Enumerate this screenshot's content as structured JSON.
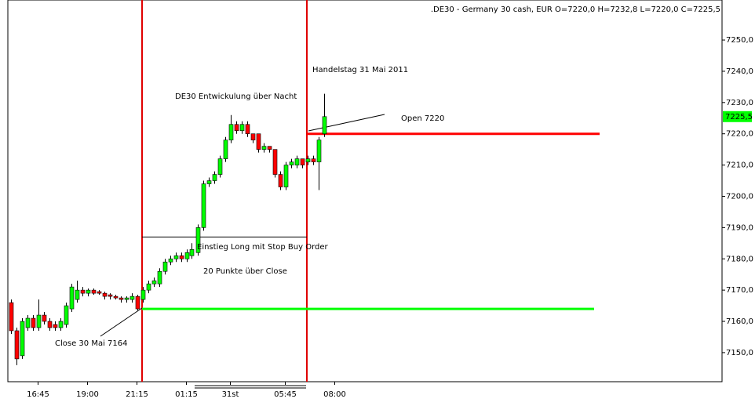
{
  "chart_data": {
    "type": "candlestick",
    "title": ".DE30 - Germany 30 cash, EUR O=7220,0 H=7232,8 L=7220,0 C=7225,5",
    "open": [
      7166,
      7157,
      7149,
      7158,
      7161,
      7158,
      7162,
      7160,
      7159,
      7158,
      7159,
      7164,
      7167,
      7170,
      7169,
      7170,
      7169.5,
      7169,
      7168.5,
      7168,
      7167.5,
      7167,
      7167,
      7168,
      7167,
      7170,
      7172,
      7172,
      7176,
      7179,
      7180,
      7181,
      7180,
      7181,
      7182,
      7190,
      7204,
      7205,
      7207,
      7212,
      7218,
      7223,
      7221,
      7223,
      7220,
      7220,
      7215,
      7216,
      7215,
      7207,
      7203,
      7210,
      7210,
      7212,
      7211,
      7212,
      7211,
      7220
    ],
    "high": [
      7167,
      7158,
      7161,
      7162,
      7162,
      7167,
      7163,
      7161,
      7160,
      7161,
      7166,
      7172,
      7173,
      7171,
      7170.5,
      7170.5,
      7170,
      7169.5,
      7169,
      7168.5,
      7168,
      7168,
      7169,
      7168.5,
      7171,
      7173,
      7174,
      7177,
      7180,
      7181,
      7182,
      7182,
      7183,
      7185,
      7191,
      7205,
      7206,
      7208,
      7213,
      7219,
      7226,
      7224,
      7224,
      7224,
      7220,
      7220,
      7217,
      7216,
      7215,
      7208,
      7211,
      7212,
      7213,
      7212,
      7213,
      7213,
      7219,
      7232.8
    ],
    "low": [
      7156,
      7146,
      7148,
      7157,
      7157,
      7157,
      7159,
      7157,
      7157,
      7157,
      7158,
      7163,
      7166,
      7168,
      7168,
      7168.5,
      7168.5,
      7167,
      7167,
      7167,
      7166,
      7166,
      7166,
      7163.5,
      7166,
      7169,
      7171,
      7171,
      7175,
      7178,
      7179,
      7179,
      7179,
      7180,
      7181,
      7189,
      7203,
      7204,
      7206,
      7211,
      7217,
      7220,
      7220,
      7219,
      7217,
      7214,
      7214,
      7214,
      7206,
      7202,
      7202,
      7209,
      7209,
      7209,
      7210,
      7210,
      7202,
      7219
    ],
    "close": [
      7157,
      7148,
      7160,
      7161,
      7158,
      7162,
      7160,
      7158,
      7158,
      7160,
      7165,
      7171,
      7170,
      7169,
      7170,
      7169,
      7169,
      7168,
      7168,
      7167.5,
      7167,
      7167.5,
      7168,
      7164,
      7170,
      7172,
      7173,
      7176,
      7179,
      7180,
      7181,
      7180,
      7182,
      7183,
      7190,
      7204,
      7205,
      7207,
      7212,
      7218,
      7223,
      7221,
      7223,
      7220,
      7218,
      7215,
      7216,
      7215,
      7207,
      7203,
      7210,
      7211,
      7212,
      7210,
      7212,
      7211,
      7218,
      7225.5
    ],
    "up_color": "#00ff00",
    "down_color": "#ff0000",
    "xlim": [
      -0.5,
      129.5
    ],
    "xticks": [
      {
        "value": 5,
        "label": "16:45"
      },
      {
        "value": 14,
        "label": "19:00"
      },
      {
        "value": 23,
        "label": "21:15"
      },
      {
        "value": 32,
        "label": "01:15"
      },
      {
        "value": 40,
        "label": "31st"
      },
      {
        "value": 50,
        "label": "05:45"
      },
      {
        "value": 59,
        "label": "08:00"
      }
    ],
    "ylim": [
      7140.7,
      7262.8
    ],
    "yticks": [
      {
        "value": 7150,
        "label": "7150,0"
      },
      {
        "value": 7160,
        "label": "7160,0"
      },
      {
        "value": 7170,
        "label": "7170,0"
      },
      {
        "value": 7180,
        "label": "7180,0"
      },
      {
        "value": 7190,
        "label": "7190,0"
      },
      {
        "value": 7200,
        "label": "7200,0"
      },
      {
        "value": 7210,
        "label": "7210,0"
      },
      {
        "value": 7220,
        "label": "7220,0"
      },
      {
        "value": 7230,
        "label": "7230,0"
      },
      {
        "value": 7240,
        "label": "7240,0"
      },
      {
        "value": 7250,
        "label": "7250,0"
      }
    ],
    "current_price": {
      "value": 7225.5,
      "label": "7225,5"
    },
    "levels": [
      {
        "value": 7220,
        "color": "#ff0000"
      },
      {
        "value": 7164,
        "color": "#00ff00"
      },
      {
        "value": 7187,
        "color": "#000000"
      }
    ],
    "annotations": [
      "Handelstag 31 Mai 2011",
      "DE30 Entwickulung über Nacht",
      "Open 7220",
      "Einstieg Long mit Stop Buy Order",
      "20 Punkte über Close",
      "Close 30 Mai 7164"
    ]
  }
}
